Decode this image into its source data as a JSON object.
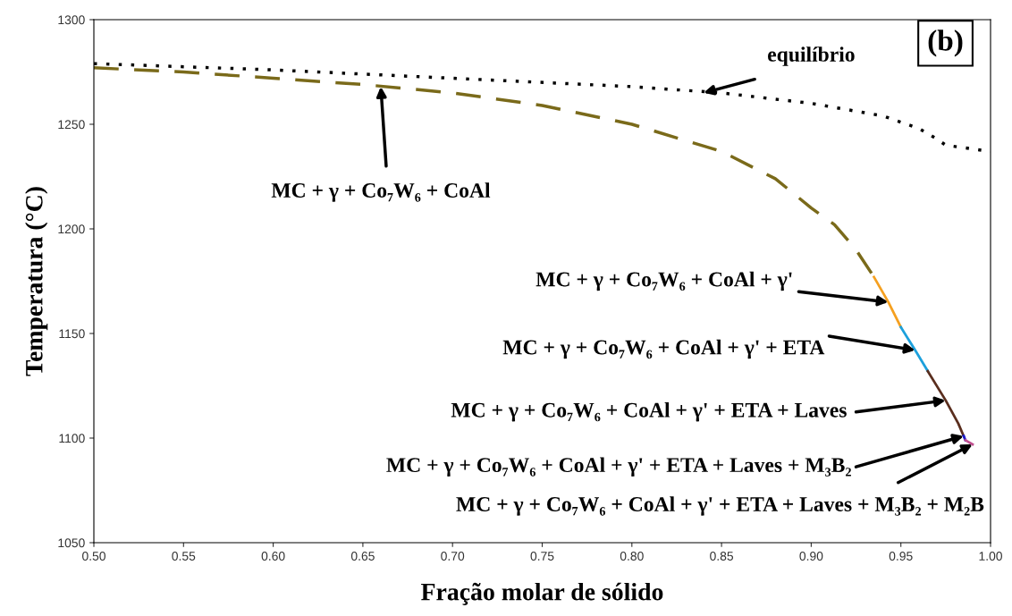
{
  "chart_data": {
    "type": "line",
    "xlabel": "Fração molar de sólido",
    "ylabel": "Temperatura (°C)",
    "xlim": [
      0.5,
      1.0
    ],
    "ylim": [
      1050,
      1300
    ],
    "xticks": [
      {
        "value": 0.5,
        "label": "0.50"
      },
      {
        "value": 0.55,
        "label": "0.55"
      },
      {
        "value": 0.6,
        "label": "0.60"
      },
      {
        "value": 0.65,
        "label": "0.65"
      },
      {
        "value": 0.7,
        "label": "0.70"
      },
      {
        "value": 0.75,
        "label": "0.75"
      },
      {
        "value": 0.8,
        "label": "0.80"
      },
      {
        "value": 0.85,
        "label": "0.85"
      },
      {
        "value": 0.9,
        "label": "0.90"
      },
      {
        "value": 0.95,
        "label": "0.95"
      },
      {
        "value": 1.0,
        "label": "1.00"
      }
    ],
    "yticks": [
      1050,
      1100,
      1150,
      1200,
      1250,
      1300
    ],
    "grid": false,
    "series": [
      {
        "color": "#000000",
        "line_style": "dotted",
        "x": [
          0.5,
          0.6,
          0.7,
          0.8,
          0.85,
          0.9,
          0.94,
          0.96,
          0.97,
          0.975,
          1.0
        ],
        "values": [
          1279,
          1276,
          1272,
          1268,
          1265,
          1260,
          1254,
          1248,
          1243,
          1240,
          1237
        ]
      },
      {
        "color": "#7a6a1a",
        "line_style": "dashed",
        "x": [
          0.5,
          0.55,
          0.6,
          0.65,
          0.7,
          0.75,
          0.8,
          0.85,
          0.88,
          0.9,
          0.913,
          0.925,
          0.935
        ],
        "values": [
          1277,
          1275,
          1272,
          1269,
          1265,
          1259,
          1250,
          1237,
          1224,
          1210,
          1202,
          1190,
          1177
        ]
      },
      {
        "color": "#f5a020",
        "line_style": "solid",
        "x": [
          0.935,
          0.943,
          0.95
        ],
        "values": [
          1177,
          1165,
          1153
        ]
      },
      {
        "color": "#1ca0dc",
        "line_style": "solid",
        "x": [
          0.95,
          0.958,
          0.965
        ],
        "values": [
          1153,
          1142,
          1132
        ]
      },
      {
        "color": "#5a2e1e",
        "line_style": "solid",
        "x": [
          0.965,
          0.975,
          0.982,
          0.985
        ],
        "values": [
          1132,
          1118,
          1107,
          1101
        ]
      },
      {
        "color": "#1a1acc",
        "line_style": "solid",
        "x": [
          0.985,
          0.986
        ],
        "values": [
          1101,
          1099
        ]
      },
      {
        "color": "#c05090",
        "line_style": "solid",
        "x": [
          0.986,
          0.99
        ],
        "values": [
          1099,
          1097
        ]
      }
    ],
    "annotations": [
      {
        "text": "equilíbrio",
        "x": 0.84,
        "y": 1265
      },
      {
        "text": "MC + γ + Co₇W₆ + CoAl",
        "x": 0.66,
        "y": 1268
      },
      {
        "text": "MC + γ + Co₇W₆ + CoAl + γ'",
        "x": 0.943,
        "y": 1165
      },
      {
        "text": "MC + γ + Co₇W₆ + CoAl + γ' + ETA",
        "x": 0.958,
        "y": 1142
      },
      {
        "text": "MC + γ + Co₇W₆ + CoAl + γ' + ETA + Laves",
        "x": 0.975,
        "y": 1118
      },
      {
        "text": "MC + γ + Co₇W₆ + CoAl + γ' + ETA + Laves + M₃B₂",
        "x": 0.985,
        "y": 1101
      },
      {
        "text": "MC + γ + Co₇W₆ + CoAl + γ' + ETA + Laves + M₃B₂ + M₂B",
        "x": 0.99,
        "y": 1097
      },
      "(b)"
    ]
  }
}
